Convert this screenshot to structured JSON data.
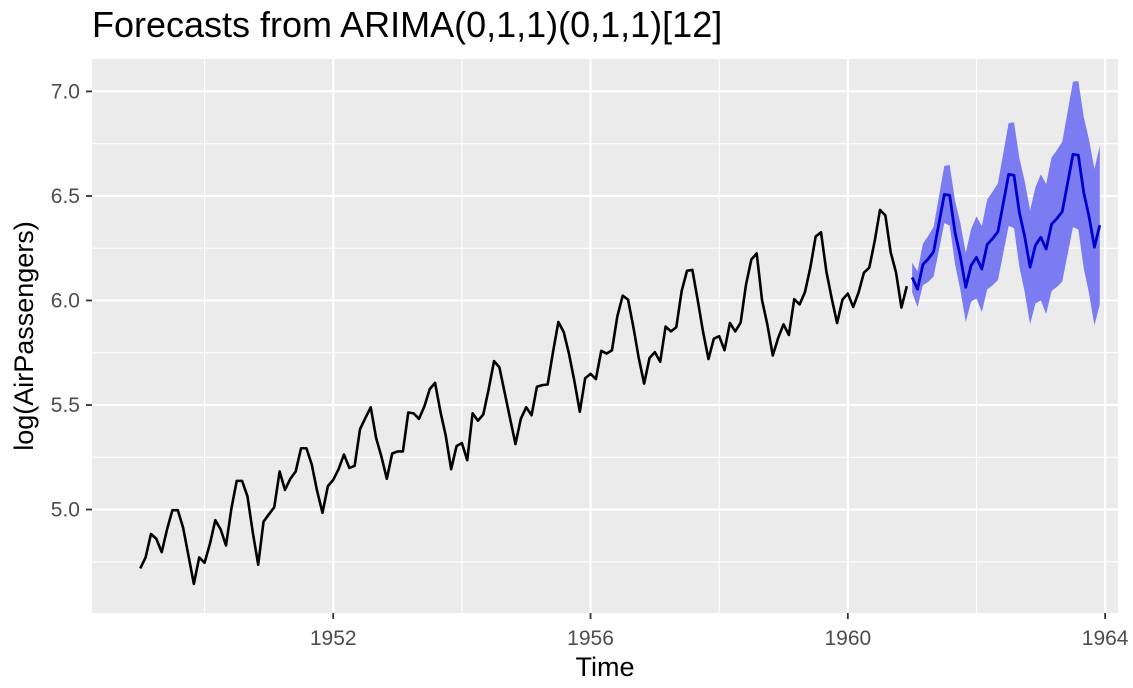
{
  "chart_data": {
    "type": "line",
    "title": "Forecasts from ARIMA(0,1,1)(0,1,1)[12]",
    "xlabel": "Time",
    "ylabel": "log(AirPassengers)",
    "xlim": [
      1948.25,
      1964.2
    ],
    "ylim": [
      4.505,
      7.155
    ],
    "x_ticks": [
      1952,
      1956,
      1960,
      1964
    ],
    "x_tick_labels": [
      "1952",
      "1956",
      "1960",
      "1964"
    ],
    "y_ticks": [
      5.0,
      5.5,
      6.0,
      6.5,
      7.0
    ],
    "y_tick_labels": [
      "5.0",
      "5.5",
      "6.0",
      "6.5",
      "7.0"
    ],
    "grid": true,
    "legend": "none",
    "colors": {
      "panel_bg": "#ebebeb",
      "grid": "#ffffff",
      "observed": "#000000",
      "forecast": "#0000cc",
      "interval": "#7b7bf2"
    },
    "observed": {
      "x_start": 1949.0,
      "step": 0.0833333,
      "values": [
        4.718,
        4.771,
        4.883,
        4.86,
        4.796,
        4.905,
        4.997,
        4.997,
        4.913,
        4.779,
        4.644,
        4.771,
        4.745,
        4.836,
        4.949,
        4.905,
        4.828,
        5.004,
        5.137,
        5.137,
        5.063,
        4.89,
        4.736,
        4.942,
        4.977,
        5.011,
        5.182,
        5.094,
        5.147,
        5.182,
        5.293,
        5.293,
        5.215,
        5.088,
        4.984,
        5.112,
        5.142,
        5.193,
        5.263,
        5.199,
        5.209,
        5.384,
        5.438,
        5.489,
        5.342,
        5.252,
        5.147,
        5.268,
        5.278,
        5.278,
        5.464,
        5.46,
        5.434,
        5.493,
        5.576,
        5.606,
        5.468,
        5.352,
        5.193,
        5.303,
        5.318,
        5.236,
        5.46,
        5.425,
        5.455,
        5.576,
        5.71,
        5.68,
        5.557,
        5.434,
        5.313,
        5.434,
        5.489,
        5.451,
        5.587,
        5.595,
        5.598,
        5.753,
        5.897,
        5.849,
        5.743,
        5.613,
        5.468,
        5.628,
        5.649,
        5.624,
        5.759,
        5.746,
        5.762,
        5.924,
        6.023,
        6.004,
        5.872,
        5.724,
        5.602,
        5.724,
        5.753,
        5.707,
        5.875,
        5.852,
        5.872,
        6.045,
        6.142,
        6.146,
        6.001,
        5.849,
        5.72,
        5.817,
        5.829,
        5.762,
        5.892,
        5.852,
        5.894,
        6.075,
        6.196,
        6.225,
        6.001,
        5.883,
        5.737,
        5.82,
        5.886,
        5.835,
        6.006,
        5.981,
        6.04,
        6.157,
        6.306,
        6.326,
        6.138,
        6.009,
        5.892,
        6.004,
        6.033,
        5.969,
        6.038,
        6.133,
        6.157,
        6.282,
        6.433,
        6.407,
        6.23,
        6.133,
        5.966,
        6.068
      ]
    },
    "forecast": {
      "x_start": 1961.0,
      "step": 0.0833333,
      "mean": [
        6.11,
        6.054,
        6.172,
        6.199,
        6.233,
        6.369,
        6.507,
        6.503,
        6.325,
        6.209,
        6.063,
        6.168,
        6.206,
        6.15,
        6.268,
        6.296,
        6.329,
        6.465,
        6.603,
        6.599,
        6.421,
        6.305,
        6.159,
        6.264,
        6.302,
        6.246,
        6.364,
        6.392,
        6.425,
        6.561,
        6.699,
        6.695,
        6.517,
        6.401,
        6.255,
        6.36
      ],
      "lower": [
        6.039,
        5.968,
        6.073,
        6.089,
        6.114,
        6.24,
        6.37,
        6.358,
        6.173,
        6.049,
        5.897,
        5.995,
        6.01,
        5.944,
        6.053,
        6.072,
        6.097,
        6.226,
        6.357,
        6.346,
        6.161,
        6.039,
        5.887,
        5.986,
        6.0,
        5.935,
        6.045,
        6.065,
        6.091,
        6.22,
        6.351,
        6.34,
        6.155,
        6.033,
        5.881,
        5.98
      ],
      "upper": [
        6.181,
        6.14,
        6.271,
        6.309,
        6.352,
        6.498,
        6.644,
        6.648,
        6.477,
        6.369,
        6.229,
        6.341,
        6.402,
        6.356,
        6.483,
        6.52,
        6.561,
        6.704,
        6.849,
        6.852,
        6.681,
        6.571,
        6.431,
        6.542,
        6.604,
        6.557,
        6.683,
        6.719,
        6.759,
        6.902,
        7.047,
        7.05,
        6.879,
        6.769,
        6.629,
        6.74
      ]
    }
  }
}
